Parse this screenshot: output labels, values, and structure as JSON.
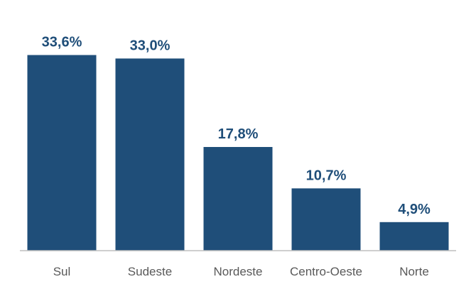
{
  "chart_data": {
    "type": "bar",
    "categories": [
      "Sul",
      "Sudeste",
      "Nordeste",
      "Centro-Oeste",
      "Norte"
    ],
    "values": [
      33.6,
      33.0,
      17.8,
      10.7,
      4.9
    ],
    "data_labels": [
      "33,6%",
      "33,0%",
      "17,8%",
      "10,7%",
      "4,9%"
    ],
    "ylim": [
      0,
      40
    ],
    "grid": false,
    "legend": "none"
  },
  "colors": {
    "bar": "#1f4e79",
    "label": "#1f4e79",
    "axis": "#bfbfbf",
    "category_text": "#595959"
  }
}
